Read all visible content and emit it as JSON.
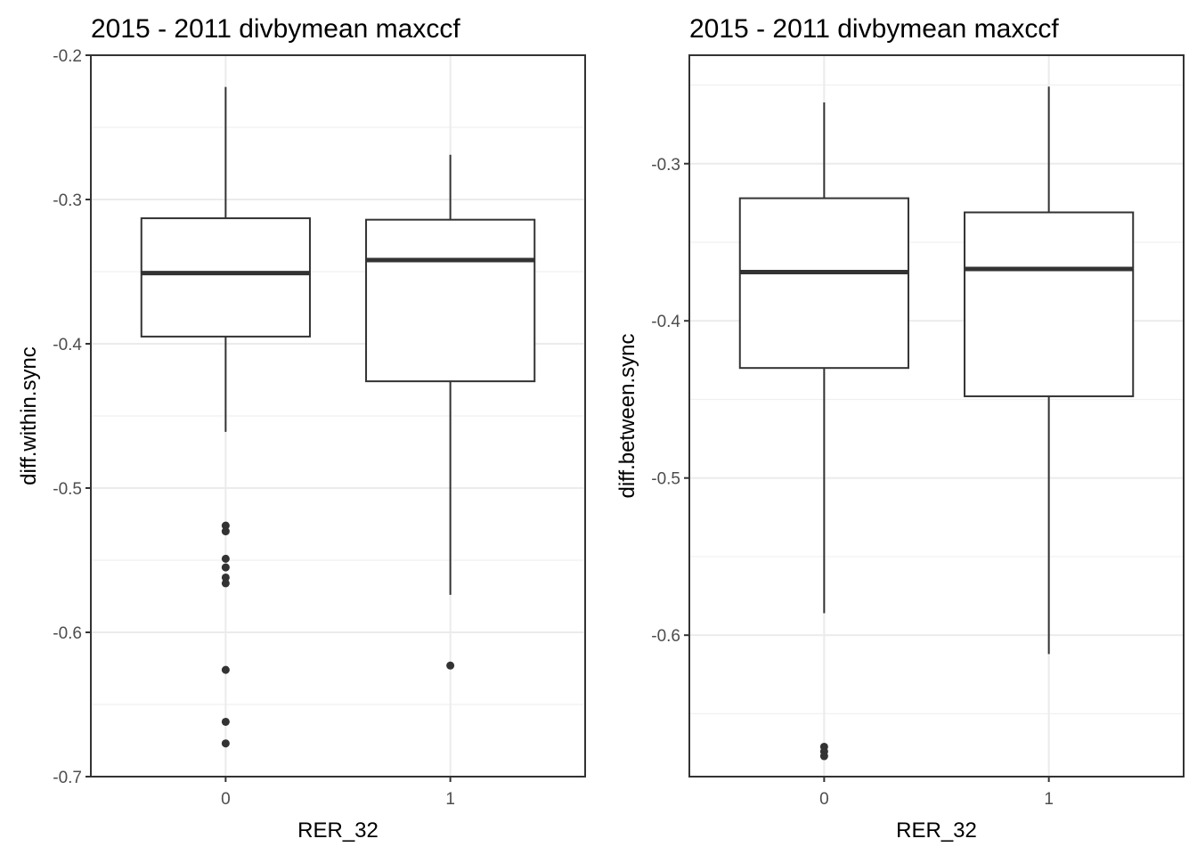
{
  "chart_data": [
    {
      "type": "box",
      "title": "2015 - 2011 divbymean maxccf",
      "xlabel": "RER_32",
      "ylabel": "diff.within.sync",
      "categories": [
        "0",
        "1"
      ],
      "ylim": [
        -0.7,
        -0.2
      ],
      "yticks": [
        -0.2,
        -0.3,
        -0.4,
        -0.5,
        -0.6,
        -0.7
      ],
      "ytick_labels": [
        "-0.2",
        "-0.3",
        "-0.4",
        "-0.5",
        "-0.6",
        "-0.7"
      ],
      "minor_grid": [
        -0.25,
        -0.35,
        -0.45,
        -0.55,
        -0.65
      ],
      "grid": true,
      "boxes": [
        {
          "category": "0",
          "whisker_low": -0.461,
          "q1": -0.395,
          "median": -0.351,
          "q3": -0.313,
          "whisker_high": -0.222,
          "outliers": [
            -0.526,
            -0.53,
            -0.549,
            -0.555,
            -0.562,
            -0.566,
            -0.626,
            -0.662,
            -0.677
          ]
        },
        {
          "category": "1",
          "whisker_low": -0.574,
          "q1": -0.426,
          "median": -0.342,
          "q3": -0.314,
          "whisker_high": -0.269,
          "outliers": [
            -0.623
          ]
        }
      ]
    },
    {
      "type": "box",
      "title": "2015 - 2011 divbymean maxccf",
      "xlabel": "RER_32",
      "ylabel": "diff.between.sync",
      "categories": [
        "0",
        "1"
      ],
      "ylim": [
        -0.69,
        -0.231
      ],
      "yticks": [
        -0.3,
        -0.4,
        -0.5,
        -0.6
      ],
      "ytick_labels": [
        "-0.3",
        "-0.4",
        "-0.5",
        "-0.6"
      ],
      "minor_grid": [
        -0.25,
        -0.35,
        -0.45,
        -0.55,
        -0.65
      ],
      "grid": true,
      "boxes": [
        {
          "category": "0",
          "whisker_low": -0.586,
          "q1": -0.43,
          "median": -0.369,
          "q3": -0.322,
          "whisker_high": -0.261,
          "outliers": [
            -0.671,
            -0.674,
            -0.677
          ]
        },
        {
          "category": "1",
          "whisker_low": -0.612,
          "q1": -0.448,
          "median": -0.367,
          "q3": -0.331,
          "whisker_high": -0.251,
          "outliers": []
        }
      ]
    }
  ]
}
